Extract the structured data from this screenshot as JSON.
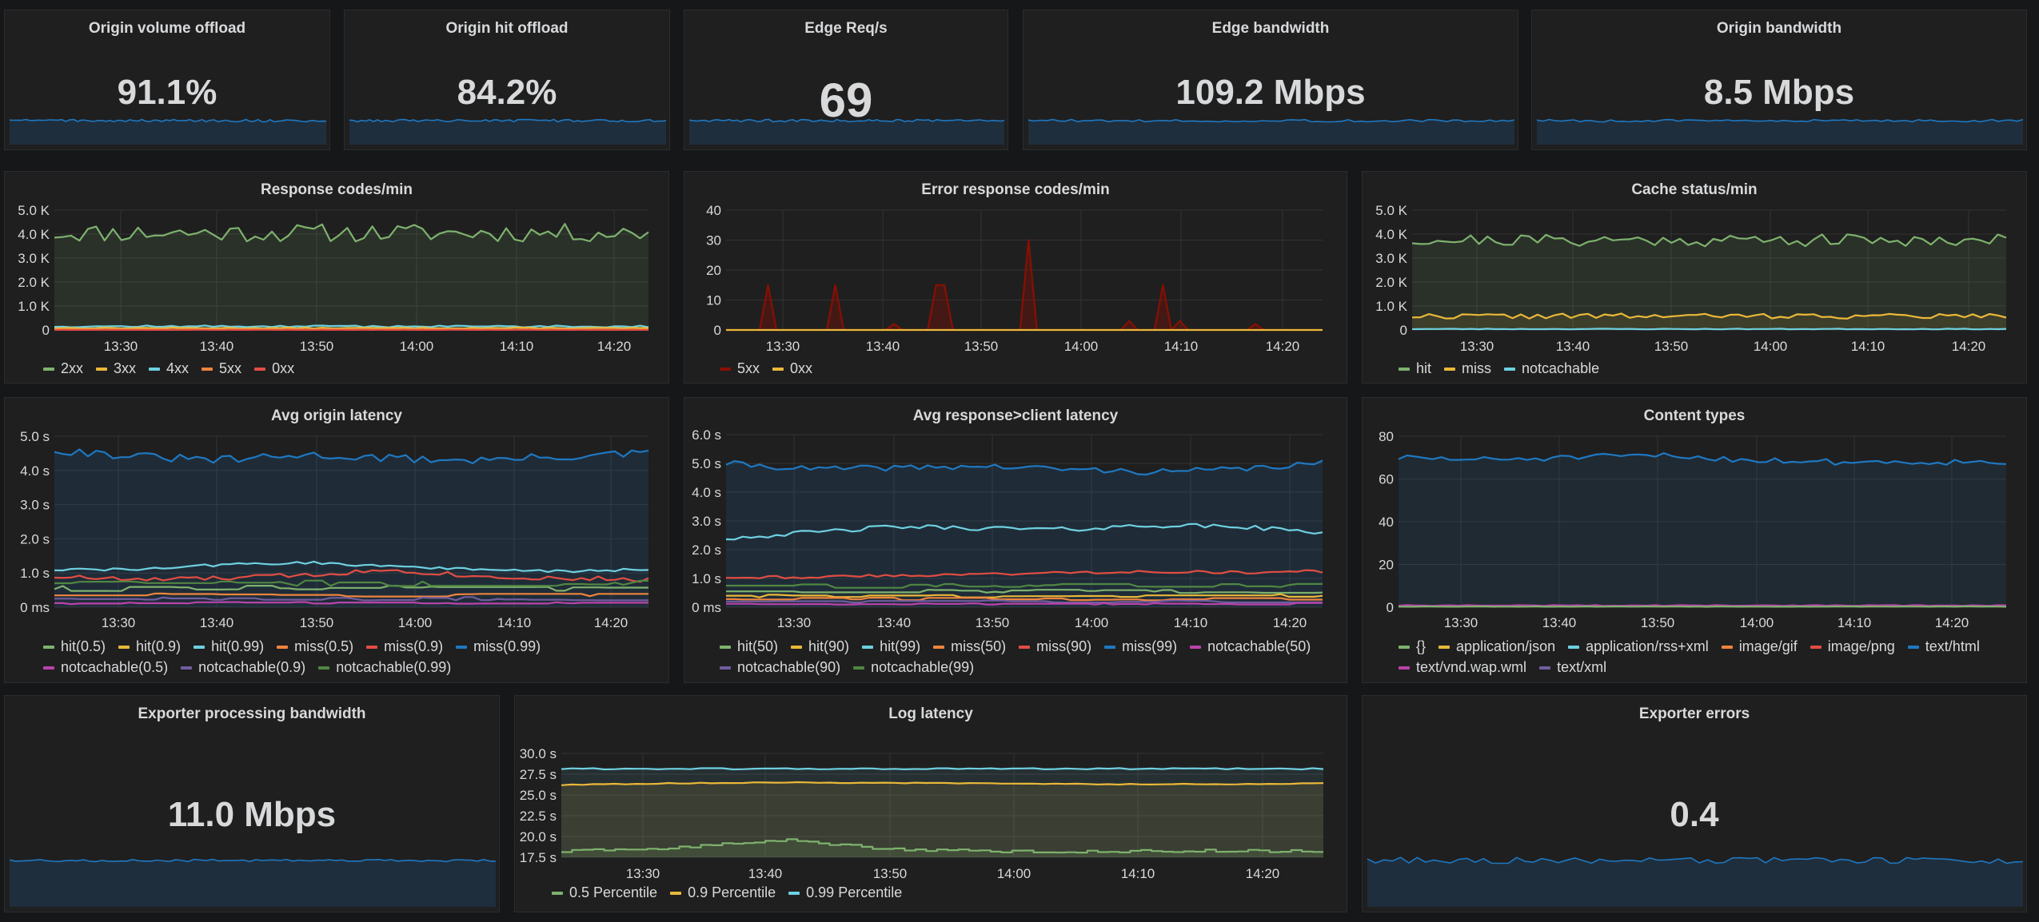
{
  "singlestats": [
    {
      "title": "Origin volume offload",
      "value": "91.1%"
    },
    {
      "title": "Origin hit offload",
      "value": "84.2%"
    },
    {
      "title": "Edge Req/s",
      "value": "69"
    },
    {
      "title": "Edge bandwidth",
      "value": "109.2 Mbps"
    },
    {
      "title": "Origin bandwidth",
      "value": "8.5 Mbps"
    },
    {
      "title": "Exporter processing bandwidth",
      "value": "11.0 Mbps"
    },
    {
      "title": "Exporter errors",
      "value": "0.4"
    }
  ],
  "time_ticks": [
    "13:30",
    "13:40",
    "13:50",
    "14:00",
    "14:10",
    "14:20"
  ],
  "colors": {
    "green": "#7eb26d",
    "yellow": "#eab839",
    "cyan": "#6ed0e0",
    "orange": "#ef843c",
    "red": "#e24d42",
    "blue": "#1f78c1",
    "magenta": "#ba43a9",
    "purple": "#705da0",
    "darkgreen": "#508642",
    "darkred": "#890f02"
  },
  "charts": [
    {
      "title": "Response codes/min",
      "yticks": [
        "5.0 K",
        "4.0 K",
        "3.0 K",
        "2.0 K",
        "1.0 K",
        "0"
      ],
      "legend": [
        {
          "label": "2xx",
          "color": "#7eb26d"
        },
        {
          "label": "3xx",
          "color": "#eab839"
        },
        {
          "label": "4xx",
          "color": "#6ed0e0"
        },
        {
          "label": "5xx",
          "color": "#ef843c"
        },
        {
          "label": "0xx",
          "color": "#e24d42"
        }
      ]
    },
    {
      "title": "Error response codes/min",
      "yticks": [
        "40",
        "30",
        "20",
        "10",
        "0"
      ],
      "legend": [
        {
          "label": "5xx",
          "color": "#890f02"
        },
        {
          "label": "0xx",
          "color": "#eab839"
        }
      ]
    },
    {
      "title": "Cache status/min",
      "yticks": [
        "5.0 K",
        "4.0 K",
        "3.0 K",
        "2.0 K",
        "1.0 K",
        "0"
      ],
      "legend": [
        {
          "label": "hit",
          "color": "#7eb26d"
        },
        {
          "label": "miss",
          "color": "#eab839"
        },
        {
          "label": "notcachable",
          "color": "#6ed0e0"
        }
      ]
    },
    {
      "title": "Avg origin latency",
      "yticks": [
        "5.0 s",
        "4.0 s",
        "3.0 s",
        "2.0 s",
        "1.0 s",
        "0 ms"
      ],
      "legend": [
        {
          "label": "hit(0.5)",
          "color": "#7eb26d"
        },
        {
          "label": "hit(0.9)",
          "color": "#eab839"
        },
        {
          "label": "hit(0.99)",
          "color": "#6ed0e0"
        },
        {
          "label": "miss(0.5)",
          "color": "#ef843c"
        },
        {
          "label": "miss(0.9)",
          "color": "#e24d42"
        },
        {
          "label": "miss(0.99)",
          "color": "#1f78c1"
        },
        {
          "label": "notcachable(0.5)",
          "color": "#ba43a9"
        },
        {
          "label": "notcachable(0.9)",
          "color": "#705da0"
        },
        {
          "label": "notcachable(0.99)",
          "color": "#508642"
        }
      ]
    },
    {
      "title": "Avg response>client latency",
      "yticks": [
        "6.0 s",
        "5.0 s",
        "4.0 s",
        "3.0 s",
        "2.0 s",
        "1.0 s",
        "0 ms"
      ],
      "legend": [
        {
          "label": "hit(50)",
          "color": "#7eb26d"
        },
        {
          "label": "hit(90)",
          "color": "#eab839"
        },
        {
          "label": "hit(99)",
          "color": "#6ed0e0"
        },
        {
          "label": "miss(50)",
          "color": "#ef843c"
        },
        {
          "label": "miss(90)",
          "color": "#e24d42"
        },
        {
          "label": "miss(99)",
          "color": "#1f78c1"
        },
        {
          "label": "notcachable(50)",
          "color": "#ba43a9"
        },
        {
          "label": "notcachable(90)",
          "color": "#705da0"
        },
        {
          "label": "notcachable(99)",
          "color": "#508642"
        }
      ]
    },
    {
      "title": "Content types",
      "yticks": [
        "80",
        "60",
        "40",
        "20",
        "0"
      ],
      "legend": [
        {
          "label": "{}",
          "color": "#7eb26d"
        },
        {
          "label": "application/json",
          "color": "#eab839"
        },
        {
          "label": "application/rss+xml",
          "color": "#6ed0e0"
        },
        {
          "label": "image/gif",
          "color": "#ef843c"
        },
        {
          "label": "image/png",
          "color": "#e24d42"
        },
        {
          "label": "text/html",
          "color": "#1f78c1"
        },
        {
          "label": "text/vnd.wap.wml",
          "color": "#ba43a9"
        },
        {
          "label": "text/xml",
          "color": "#705da0"
        }
      ]
    },
    {
      "title": "Log latency",
      "yticks": [
        "30.0 s",
        "27.5 s",
        "25.0 s",
        "22.5 s",
        "20.0 s",
        "17.5 s"
      ],
      "legend": [
        {
          "label": "0.5 Percentile",
          "color": "#7eb26d"
        },
        {
          "label": "0.9 Percentile",
          "color": "#eab839"
        },
        {
          "label": "0.99 Percentile",
          "color": "#6ed0e0"
        }
      ]
    }
  ],
  "chart_data": [
    {
      "type": "line",
      "title": "Response codes/min",
      "x": [
        "13:30",
        "13:40",
        "13:50",
        "14:00",
        "14:10",
        "14:20"
      ],
      "ylim": [
        0,
        5000
      ],
      "series": [
        {
          "name": "2xx",
          "values": [
            4000,
            4100,
            4300,
            4100,
            3900,
            4100
          ]
        },
        {
          "name": "3xx",
          "values": [
            80,
            80,
            80,
            80,
            80,
            80
          ]
        },
        {
          "name": "4xx",
          "values": [
            150,
            150,
            150,
            150,
            150,
            150
          ]
        },
        {
          "name": "5xx",
          "values": [
            20,
            20,
            20,
            20,
            20,
            20
          ]
        },
        {
          "name": "0xx",
          "values": [
            0,
            0,
            0,
            0,
            0,
            0
          ]
        }
      ]
    },
    {
      "type": "line",
      "title": "Error response codes/min",
      "x": [
        "13:30",
        "13:40",
        "13:50",
        "14:00",
        "14:10",
        "14:20"
      ],
      "ylim": [
        0,
        40
      ],
      "series": [
        {
          "name": "5xx",
          "values": [
            0,
            1,
            15,
            0,
            2,
            0
          ]
        },
        {
          "name": "0xx",
          "values": [
            0,
            0,
            0,
            0,
            0,
            0
          ]
        }
      ]
    },
    {
      "type": "line",
      "title": "Cache status/min",
      "x": [
        "13:30",
        "13:40",
        "13:50",
        "14:00",
        "14:10",
        "14:20"
      ],
      "ylim": [
        0,
        5000
      ],
      "series": [
        {
          "name": "hit",
          "values": [
            3800,
            3900,
            3700,
            3800,
            3700,
            3600
          ]
        },
        {
          "name": "miss",
          "values": [
            600,
            650,
            550,
            600,
            550,
            500
          ]
        },
        {
          "name": "notcachable",
          "values": [
            50,
            50,
            50,
            50,
            50,
            50
          ]
        }
      ]
    },
    {
      "type": "line",
      "title": "Avg origin latency",
      "x": [
        "13:30",
        "13:40",
        "13:50",
        "14:00",
        "14:10",
        "14:20"
      ],
      "ylim": [
        0,
        5
      ],
      "series": [
        {
          "name": "miss(0.99)",
          "values": [
            4.5,
            4.3,
            4.4,
            4.4,
            4.3,
            4.4
          ]
        },
        {
          "name": "hit(0.99)",
          "values": [
            1.1,
            1.1,
            1.3,
            1.2,
            1.1,
            1.1
          ]
        },
        {
          "name": "miss(0.9)",
          "values": [
            0.9,
            0.8,
            0.9,
            1.0,
            0.9,
            0.8
          ]
        }
      ]
    },
    {
      "type": "line",
      "title": "Avg response>client latency",
      "x": [
        "13:30",
        "13:40",
        "13:50",
        "14:00",
        "14:10",
        "14:20"
      ],
      "ylim": [
        0,
        6
      ],
      "series": [
        {
          "name": "miss(99)",
          "values": [
            4.9,
            4.8,
            4.9,
            4.8,
            4.7,
            4.8
          ]
        },
        {
          "name": "hit(99)",
          "values": [
            2.5,
            2.8,
            2.8,
            2.7,
            2.8,
            2.7
          ]
        },
        {
          "name": "miss(90)",
          "values": [
            1.0,
            1.1,
            1.1,
            1.2,
            1.2,
            1.2
          ]
        }
      ]
    },
    {
      "type": "line",
      "title": "Content types",
      "x": [
        "13:30",
        "13:40",
        "13:50",
        "14:00",
        "14:10",
        "14:20"
      ],
      "ylim": [
        0,
        80
      ],
      "series": [
        {
          "name": "text/html",
          "values": [
            69,
            70,
            70,
            68,
            68,
            67
          ]
        }
      ]
    },
    {
      "type": "line",
      "title": "Log latency",
      "x": [
        "13:30",
        "13:40",
        "13:50",
        "14:00",
        "14:10",
        "14:20"
      ],
      "ylim": [
        17.5,
        30
      ],
      "series": [
        {
          "name": "0.5 Percentile",
          "values": [
            18.5,
            19.5,
            18.3,
            18.2,
            18.2,
            18.3
          ]
        },
        {
          "name": "0.9 Percentile",
          "values": [
            26.3,
            26.5,
            26.4,
            26.3,
            26.3,
            26.4
          ]
        },
        {
          "name": "0.99 Percentile",
          "values": [
            28.2,
            28.2,
            28.2,
            28.1,
            28.1,
            28.2
          ]
        }
      ]
    }
  ]
}
